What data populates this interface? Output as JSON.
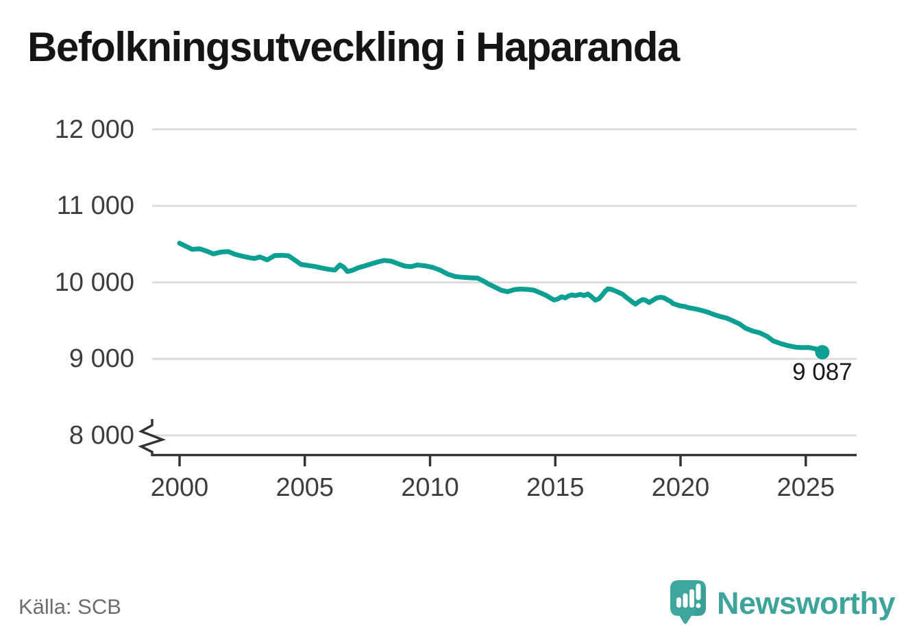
{
  "title": "Befolkningsutveckling i Haparanda",
  "source_note": "Källa: SCB",
  "branding": {
    "name": "Newsworthy",
    "icon": "speech-bubble-bar-chart-icon"
  },
  "colors": {
    "line": "#0c9f92",
    "end_dot": "#0c9f92",
    "gridline": "#dcdcdc",
    "axis": "#333333",
    "tick_label": "#3d3d3d",
    "title_text": "#151515",
    "source_text": "#6c6c74",
    "brand_teal": "#3da39b",
    "background": "#ffffff"
  },
  "chart_data": {
    "type": "line",
    "title": "Befolkningsutveckling i Haparanda",
    "xlabel": "",
    "ylabel": "",
    "grid": "horizontal",
    "legend": "none",
    "y_axis_break": true,
    "x_ticks": [
      2000,
      2005,
      2010,
      2015,
      2020,
      2025
    ],
    "x_tick_labels": [
      "2000",
      "2005",
      "2010",
      "2015",
      "2020",
      "2025"
    ],
    "y_ticks": [
      12000,
      11000,
      10000,
      9000,
      8000
    ],
    "y_tick_labels": [
      "12 000",
      "11 000",
      "10 000",
      "9 000",
      "8 000"
    ],
    "xlim": [
      1998.9,
      2027.0
    ],
    "ylim": [
      7750,
      12300
    ],
    "last_point": {
      "year": 2025.66,
      "value": 9087,
      "label": "9 087"
    },
    "series": [
      {
        "points": [
          [
            2000.0,
            10512
          ],
          [
            2000.2,
            10480
          ],
          [
            2000.5,
            10432
          ],
          [
            2000.8,
            10438
          ],
          [
            2001.05,
            10412
          ],
          [
            2001.35,
            10372
          ],
          [
            2001.65,
            10396
          ],
          [
            2001.95,
            10402
          ],
          [
            2002.2,
            10368
          ],
          [
            2002.5,
            10342
          ],
          [
            2002.8,
            10322
          ],
          [
            2003.0,
            10312
          ],
          [
            2003.2,
            10332
          ],
          [
            2003.5,
            10294
          ],
          [
            2003.8,
            10350
          ],
          [
            2004.1,
            10354
          ],
          [
            2004.35,
            10347
          ],
          [
            2004.6,
            10292
          ],
          [
            2004.85,
            10234
          ],
          [
            2005.1,
            10222
          ],
          [
            2005.4,
            10207
          ],
          [
            2005.7,
            10186
          ],
          [
            2005.95,
            10170
          ],
          [
            2006.2,
            10160
          ],
          [
            2006.4,
            10228
          ],
          [
            2006.55,
            10200
          ],
          [
            2006.7,
            10142
          ],
          [
            2006.9,
            10157
          ],
          [
            2007.1,
            10186
          ],
          [
            2007.4,
            10216
          ],
          [
            2007.7,
            10246
          ],
          [
            2007.95,
            10270
          ],
          [
            2008.15,
            10287
          ],
          [
            2008.45,
            10277
          ],
          [
            2008.75,
            10240
          ],
          [
            2009.0,
            10212
          ],
          [
            2009.25,
            10206
          ],
          [
            2009.5,
            10228
          ],
          [
            2009.8,
            10216
          ],
          [
            2010.1,
            10196
          ],
          [
            2010.4,
            10160
          ],
          [
            2010.7,
            10108
          ],
          [
            2011.0,
            10076
          ],
          [
            2011.3,
            10066
          ],
          [
            2011.6,
            10060
          ],
          [
            2011.9,
            10056
          ],
          [
            2012.1,
            10022
          ],
          [
            2012.35,
            9976
          ],
          [
            2012.6,
            9936
          ],
          [
            2012.85,
            9896
          ],
          [
            2013.1,
            9878
          ],
          [
            2013.35,
            9904
          ],
          [
            2013.6,
            9912
          ],
          [
            2013.9,
            9908
          ],
          [
            2014.15,
            9898
          ],
          [
            2014.45,
            9857
          ],
          [
            2014.65,
            9827
          ],
          [
            2014.8,
            9797
          ],
          [
            2014.95,
            9770
          ],
          [
            2015.1,
            9782
          ],
          [
            2015.25,
            9812
          ],
          [
            2015.4,
            9797
          ],
          [
            2015.5,
            9818
          ],
          [
            2015.65,
            9836
          ],
          [
            2015.8,
            9827
          ],
          [
            2016.0,
            9842
          ],
          [
            2016.15,
            9827
          ],
          [
            2016.3,
            9848
          ],
          [
            2016.45,
            9812
          ],
          [
            2016.6,
            9767
          ],
          [
            2016.75,
            9788
          ],
          [
            2016.9,
            9845
          ],
          [
            2017.0,
            9887
          ],
          [
            2017.1,
            9916
          ],
          [
            2017.25,
            9908
          ],
          [
            2017.4,
            9887
          ],
          [
            2017.55,
            9866
          ],
          [
            2017.7,
            9842
          ],
          [
            2017.8,
            9812
          ],
          [
            2017.95,
            9776
          ],
          [
            2018.1,
            9737
          ],
          [
            2018.2,
            9716
          ],
          [
            2018.35,
            9752
          ],
          [
            2018.5,
            9776
          ],
          [
            2018.6,
            9767
          ],
          [
            2018.75,
            9737
          ],
          [
            2018.9,
            9767
          ],
          [
            2019.05,
            9797
          ],
          [
            2019.2,
            9806
          ],
          [
            2019.35,
            9797
          ],
          [
            2019.45,
            9776
          ],
          [
            2019.6,
            9752
          ],
          [
            2019.7,
            9722
          ],
          [
            2019.85,
            9707
          ],
          [
            2020.0,
            9692
          ],
          [
            2020.15,
            9686
          ],
          [
            2020.3,
            9670
          ],
          [
            2020.45,
            9662
          ],
          [
            2020.7,
            9645
          ],
          [
            2020.9,
            9628
          ],
          [
            2021.1,
            9608
          ],
          [
            2021.35,
            9578
          ],
          [
            2021.6,
            9552
          ],
          [
            2021.85,
            9532
          ],
          [
            2022.1,
            9495
          ],
          [
            2022.35,
            9458
          ],
          [
            2022.6,
            9400
          ],
          [
            2022.9,
            9362
          ],
          [
            2023.15,
            9342
          ],
          [
            2023.45,
            9296
          ],
          [
            2023.7,
            9235
          ],
          [
            2024.0,
            9200
          ],
          [
            2024.3,
            9172
          ],
          [
            2024.6,
            9153
          ],
          [
            2024.85,
            9147
          ],
          [
            2025.1,
            9150
          ],
          [
            2025.35,
            9135
          ],
          [
            2025.5,
            9118
          ],
          [
            2025.66,
            9087
          ]
        ]
      }
    ]
  }
}
